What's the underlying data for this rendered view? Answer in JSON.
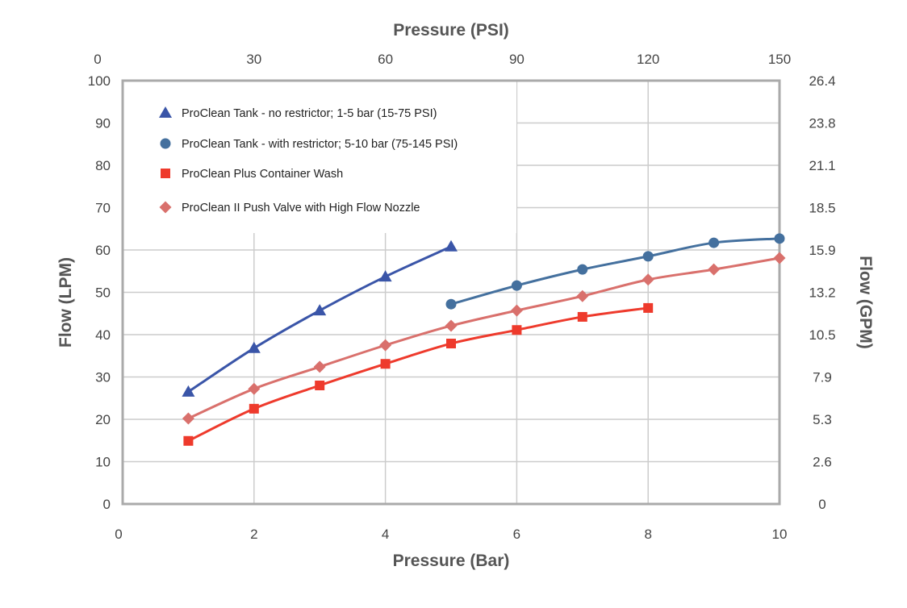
{
  "chart_data": {
    "type": "line",
    "xlabel": "Pressure (Bar)",
    "x2label": "Pressure (PSI)",
    "ylabel": "Flow (LPM)",
    "y2label": "Flow (GPM)",
    "xlim": [
      0,
      10
    ],
    "ylim": [
      0,
      100
    ],
    "x_ticks": [
      "0",
      "2",
      "4",
      "6",
      "8",
      "10"
    ],
    "x2_ticks": [
      "0",
      "30",
      "60",
      "90",
      "120",
      "150"
    ],
    "y_ticks": [
      "0",
      "10",
      "20",
      "30",
      "40",
      "50",
      "60",
      "70",
      "80",
      "90",
      "100"
    ],
    "y2_ticks": [
      "0",
      "2.6",
      "5.3",
      "7.9",
      "10.5",
      "13.2",
      "15.9",
      "18.5",
      "21.1",
      "23.8",
      "26.4"
    ],
    "grid": true,
    "legend": "top-left",
    "series": [
      {
        "name": "ProClean Tank - no restrictor; 1-5 bar (15-75 PSI)",
        "marker": "triangle",
        "color": "#3a55a8",
        "x": [
          1,
          2,
          3,
          4,
          5
        ],
        "y": [
          26.5,
          36.8,
          45.7,
          53.7,
          60.8
        ]
      },
      {
        "name": "ProClean Tank - with restrictor; 5-10 bar (75-145 PSI)",
        "marker": "circle",
        "color": "#44709e",
        "x": [
          5,
          6,
          7,
          8,
          9,
          10
        ],
        "y": [
          47.2,
          51.6,
          55.4,
          58.5,
          61.7,
          62.7
        ]
      },
      {
        "name": "ProClean Plus Container Wash",
        "marker": "square",
        "color": "#ee3a2c",
        "x": [
          1,
          2,
          3,
          4,
          5,
          6,
          7,
          8
        ],
        "y": [
          14.9,
          22.5,
          28,
          33.1,
          37.9,
          41.1,
          44.2,
          46.3
        ]
      },
      {
        "name": "ProClean II Push Valve with High Flow Nozzle",
        "marker": "diamond",
        "color": "#d9706c",
        "x": [
          1,
          2,
          3,
          4,
          5,
          6,
          7,
          8,
          9,
          10
        ],
        "y": [
          20.2,
          27.2,
          32.4,
          37.5,
          42.1,
          45.7,
          49.1,
          53,
          55.4,
          58.1
        ]
      }
    ]
  }
}
